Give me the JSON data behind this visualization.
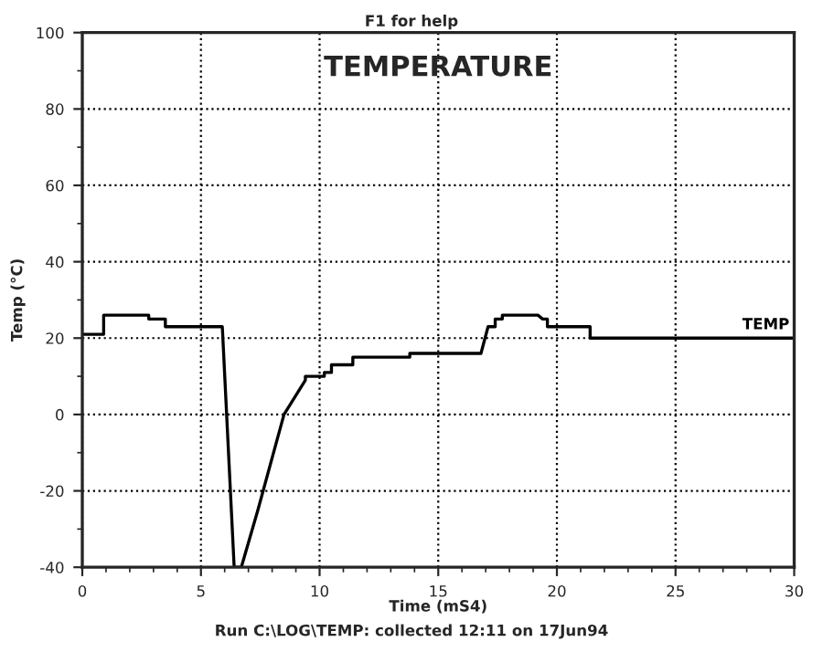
{
  "chart_data": {
    "type": "line",
    "title": "TEMPERATURE",
    "xlabel": "Time (mS4)",
    "ylabel": "Temp (°C)",
    "annotations": [
      "F1 for help",
      "Run C:\\LOG\\TEMP: collected 12:11 on 17Jun94"
    ],
    "series": [
      {
        "name": "TEMP",
        "color": "#000000",
        "x": [
          0,
          0.9,
          0.9,
          2.8,
          2.8,
          3.5,
          3.5,
          5.9,
          6.4,
          6.7,
          7.4,
          8.5,
          9.4,
          9.4,
          10.2,
          10.2,
          10.5,
          10.5,
          11.4,
          11.4,
          13.8,
          13.8,
          16.8,
          17.1,
          17.4,
          17.4,
          17.7,
          17.7,
          19.2,
          19.4,
          19.6,
          19.6,
          21.4,
          21.4,
          30
        ],
        "values": [
          21,
          21,
          26,
          26,
          25,
          25,
          23,
          23,
          -40,
          -40,
          -25,
          0,
          9,
          10,
          10,
          11,
          11,
          13,
          13,
          15,
          15,
          16,
          16,
          23,
          23,
          25,
          25,
          26,
          26,
          25,
          25,
          23,
          23,
          20,
          20
        ]
      }
    ],
    "xlim": [
      0,
      30
    ],
    "xticks": [
      0,
      5,
      10,
      15,
      20,
      25,
      30
    ],
    "ylim": [
      -40,
      100
    ],
    "yticks": [
      -40,
      -20,
      0,
      20,
      40,
      60,
      80,
      100
    ],
    "grid": true,
    "legend": false,
    "marker": "none",
    "line_style": "solid"
  }
}
